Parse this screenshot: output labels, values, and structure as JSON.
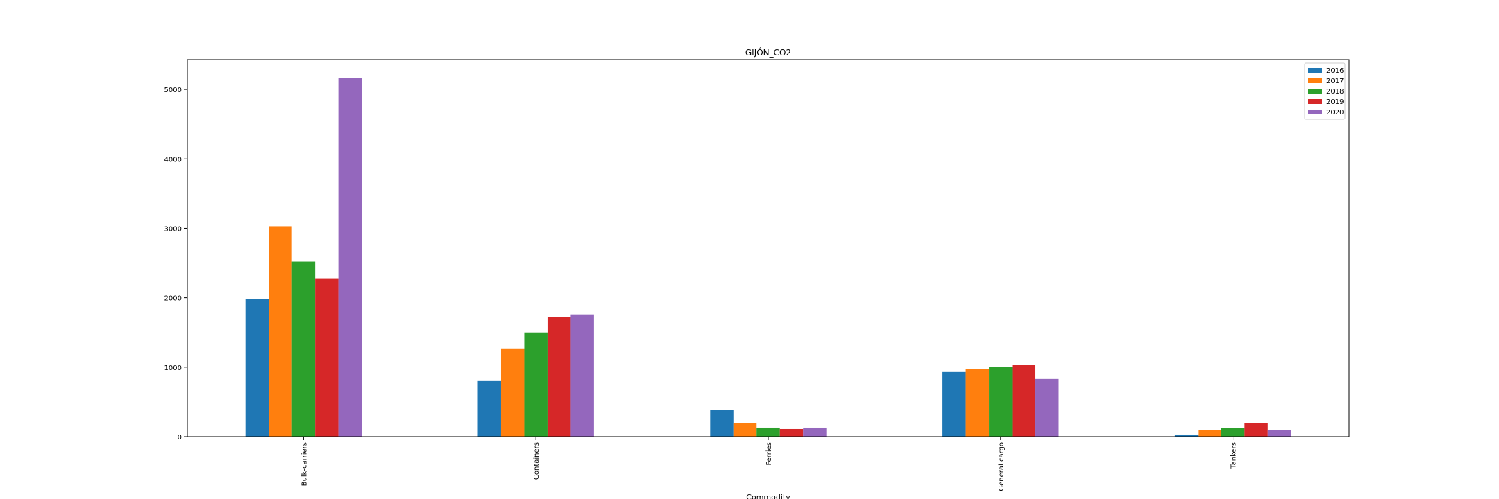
{
  "chart_data": {
    "type": "bar",
    "title": "GIJÓN_CO2",
    "xlabel": "Commodity",
    "ylabel": "",
    "categories": [
      "Bulk-carriers",
      "Containers",
      "Ferries",
      "General cargo",
      "Tankers"
    ],
    "series": [
      {
        "name": "2016",
        "color": "#1f77b4",
        "values": [
          1980,
          800,
          380,
          930,
          30
        ]
      },
      {
        "name": "2017",
        "color": "#ff7f0e",
        "values": [
          3030,
          1270,
          190,
          970,
          90
        ]
      },
      {
        "name": "2018",
        "color": "#2ca02c",
        "values": [
          2520,
          1500,
          130,
          1000,
          120
        ]
      },
      {
        "name": "2019",
        "color": "#d62728",
        "values": [
          2280,
          1720,
          110,
          1030,
          190
        ]
      },
      {
        "name": "2020",
        "color": "#9467bd",
        "values": [
          5170,
          1760,
          130,
          830,
          90
        ]
      }
    ],
    "ylim": [
      0,
      5430
    ],
    "yticks": [
      0,
      1000,
      2000,
      3000,
      4000,
      5000
    ],
    "legend": "upper right",
    "grid": false
  }
}
